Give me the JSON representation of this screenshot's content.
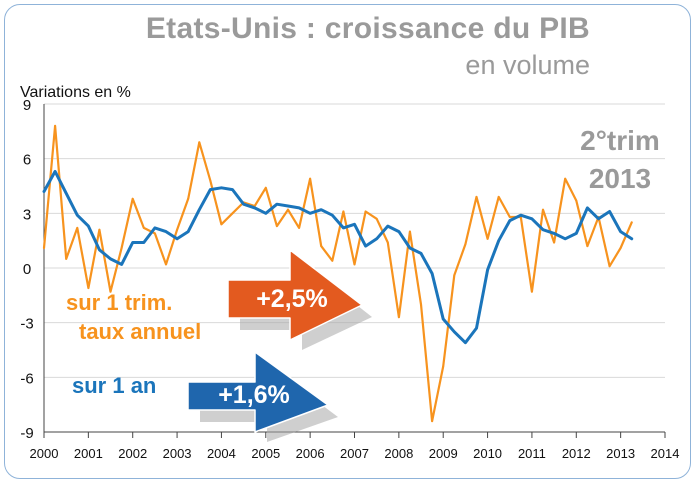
{
  "title": "Etats-Unis : croissance du PIB",
  "subtitle": "en volume",
  "period": {
    "line1": "2°trim",
    "line2": "2013"
  },
  "annotations": {
    "quarterly_label_1": "sur 1 trim.",
    "quarterly_label_2": "taux annuel",
    "quarterly_value": "+2,5%",
    "annual_label": "sur 1 an",
    "annual_value": "+1,6%"
  },
  "colors": {
    "quarterly_series": "#f7931e",
    "annual_series": "#1b75bb",
    "title_gray": "#9a9a9a",
    "arrow_orange": "#e35a1f",
    "arrow_blue": "#1f66ad",
    "grid": "#d9d9d9",
    "frame": "#8fb3d9"
  },
  "chart_data": {
    "type": "line",
    "ylabel": "Variations en %",
    "ylim": [
      -9,
      9
    ],
    "yticks": [
      9,
      6,
      3,
      0,
      -3,
      -6,
      -9
    ],
    "xlim": [
      2000,
      2014
    ],
    "xticks": [
      2000,
      2001,
      2002,
      2003,
      2004,
      2005,
      2006,
      2007,
      2008,
      2009,
      2010,
      2011,
      2012,
      2013,
      2014
    ],
    "grid": true,
    "series": [
      {
        "name": "sur 1 trim. taux annuel",
        "x": [
          2000.0,
          2000.25,
          2000.5,
          2000.75,
          2001.0,
          2001.25,
          2001.5,
          2001.75,
          2002.0,
          2002.25,
          2002.5,
          2002.75,
          2003.0,
          2003.25,
          2003.5,
          2003.75,
          2004.0,
          2004.25,
          2004.5,
          2004.75,
          2005.0,
          2005.25,
          2005.5,
          2005.75,
          2006.0,
          2006.25,
          2006.5,
          2006.75,
          2007.0,
          2007.25,
          2007.5,
          2007.75,
          2008.0,
          2008.25,
          2008.5,
          2008.75,
          2009.0,
          2009.25,
          2009.5,
          2009.75,
          2010.0,
          2010.25,
          2010.5,
          2010.75,
          2011.0,
          2011.25,
          2011.5,
          2011.75,
          2012.0,
          2012.25,
          2012.5,
          2012.75,
          2013.0,
          2013.25
        ],
        "values": [
          1.1,
          7.8,
          0.5,
          2.2,
          -1.1,
          2.1,
          -1.3,
          1.1,
          3.8,
          2.2,
          1.9,
          0.2,
          2.1,
          3.8,
          6.9,
          4.8,
          2.4,
          3.0,
          3.6,
          3.4,
          4.4,
          2.3,
          3.2,
          2.2,
          4.9,
          1.2,
          0.4,
          3.1,
          0.2,
          3.1,
          2.7,
          1.4,
          -2.7,
          2.0,
          -2.0,
          -8.4,
          -5.4,
          -0.4,
          1.3,
          3.9,
          1.6,
          3.9,
          2.8,
          2.8,
          -1.3,
          3.2,
          1.4,
          4.9,
          3.7,
          1.2,
          2.8,
          0.1,
          1.1,
          2.5
        ]
      },
      {
        "name": "sur 1 an",
        "x": [
          2000.0,
          2000.25,
          2000.5,
          2000.75,
          2001.0,
          2001.25,
          2001.5,
          2001.75,
          2002.0,
          2002.25,
          2002.5,
          2002.75,
          2003.0,
          2003.25,
          2003.5,
          2003.75,
          2004.0,
          2004.25,
          2004.5,
          2004.75,
          2005.0,
          2005.25,
          2005.5,
          2005.75,
          2006.0,
          2006.25,
          2006.5,
          2006.75,
          2007.0,
          2007.25,
          2007.5,
          2007.75,
          2008.0,
          2008.25,
          2008.5,
          2008.75,
          2009.0,
          2009.25,
          2009.5,
          2009.75,
          2010.0,
          2010.25,
          2010.5,
          2010.75,
          2011.0,
          2011.25,
          2011.5,
          2011.75,
          2012.0,
          2012.25,
          2012.5,
          2012.75,
          2013.0,
          2013.25
        ],
        "values": [
          4.2,
          5.3,
          4.1,
          2.9,
          2.3,
          1.0,
          0.5,
          0.2,
          1.4,
          1.4,
          2.2,
          2.0,
          1.6,
          2.0,
          3.2,
          4.3,
          4.4,
          4.3,
          3.5,
          3.3,
          3.0,
          3.5,
          3.4,
          3.3,
          3.0,
          3.2,
          2.9,
          2.2,
          2.4,
          1.2,
          1.6,
          2.3,
          2.0,
          1.1,
          0.8,
          -0.3,
          -2.8,
          -3.5,
          -4.1,
          -3.3,
          -0.1,
          1.5,
          2.6,
          2.9,
          2.7,
          2.1,
          1.9,
          1.6,
          1.9,
          3.3,
          2.7,
          3.1,
          2.0,
          1.6
        ]
      }
    ]
  }
}
